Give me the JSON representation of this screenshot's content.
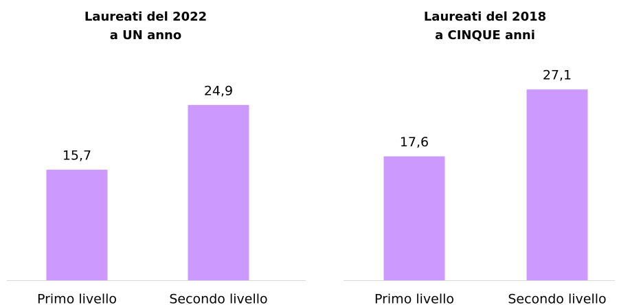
{
  "chart_data": [
    {
      "type": "bar",
      "title": [
        "Laureati del 2022",
        "a UN anno"
      ],
      "categories": [
        "Primo livello",
        "Secondo livello"
      ],
      "values": [
        15.7,
        24.9
      ],
      "value_labels": [
        "15,7",
        "24,9"
      ],
      "color": "#cc99ff"
    },
    {
      "type": "bar",
      "title": [
        "Laureati del 2018",
        "a CINQUE anni"
      ],
      "categories": [
        "Primo livello",
        "Secondo livello"
      ],
      "values": [
        17.6,
        27.1
      ],
      "value_labels": [
        "17,6",
        "27,1"
      ],
      "color": "#cc99ff"
    }
  ]
}
